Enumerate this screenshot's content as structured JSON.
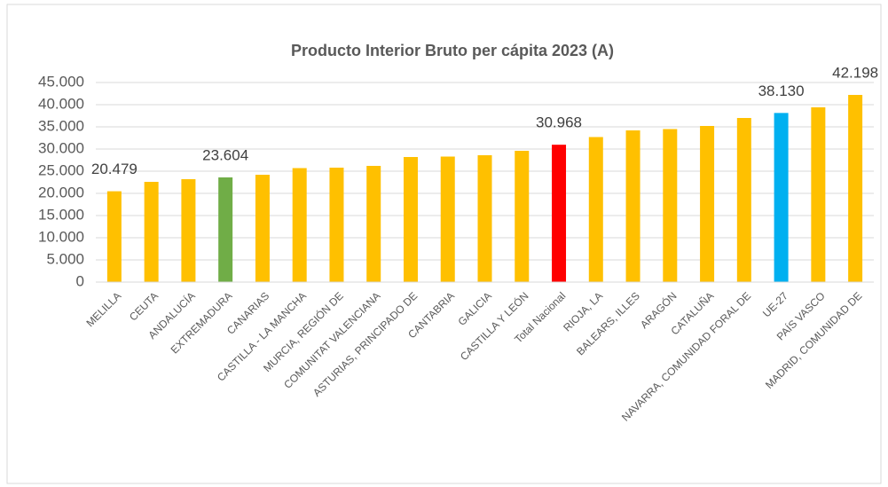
{
  "chart_data": {
    "type": "bar",
    "title": "Producto Interior Bruto per cápita 2023 (A)",
    "categories": [
      "MELILLA",
      "CEUTA",
      "ANDALUCÍA",
      "EXTREMADURA",
      "CANARIAS",
      "CASTILLA - LA MANCHA",
      "MURCIA, REGIÓN DE",
      "COMUNITAT VALENCIANA",
      "ASTURIAS, PRINCIPADO DE",
      "CANTABRIA",
      "GALICIA",
      "CASTILLA Y LEÓN",
      "Total Nacional",
      "RIOJA, LA",
      "BALEARS, ILLES",
      "ARAGÓN",
      "CATALUÑA",
      "NAVARRA, COMUNIDAD FORAL DE",
      "UE-27",
      "PAÍS VASCO",
      "MADRID, COMUNIDAD DE"
    ],
    "values": [
      20479,
      22600,
      23200,
      23604,
      24200,
      25700,
      25800,
      26200,
      28200,
      28300,
      28600,
      29600,
      30968,
      32700,
      34200,
      34500,
      35200,
      37000,
      38130,
      39400,
      42198
    ],
    "value_labels": [
      "20.479",
      null,
      null,
      "23.604",
      null,
      null,
      null,
      null,
      null,
      null,
      null,
      null,
      "30.968",
      null,
      null,
      null,
      null,
      null,
      "38.130",
      null,
      "42.198"
    ],
    "colors": [
      "#FFC000",
      "#FFC000",
      "#FFC000",
      "#70AD47",
      "#FFC000",
      "#FFC000",
      "#FFC000",
      "#FFC000",
      "#FFC000",
      "#FFC000",
      "#FFC000",
      "#FFC000",
      "#FF0000",
      "#FFC000",
      "#FFC000",
      "#FFC000",
      "#FFC000",
      "#FFC000",
      "#00B0F0",
      "#FFC000",
      "#FFC000"
    ],
    "ylim": [
      0,
      45000
    ],
    "yticks": [
      0,
      {
        "value": 5000,
        "label": "5.000"
      },
      {
        "value": 10000,
        "label": "10.000"
      },
      {
        "value": 15000,
        "label": "15.000"
      },
      {
        "value": 20000,
        "label": "20.000"
      },
      {
        "value": 25000,
        "label": "25.000"
      },
      {
        "value": 30000,
        "label": "30.000"
      },
      {
        "value": 35000,
        "label": "35.000"
      },
      {
        "value": 40000,
        "label": "40.000"
      },
      {
        "value": 45000,
        "label": "45.000"
      }
    ],
    "grid": true
  }
}
